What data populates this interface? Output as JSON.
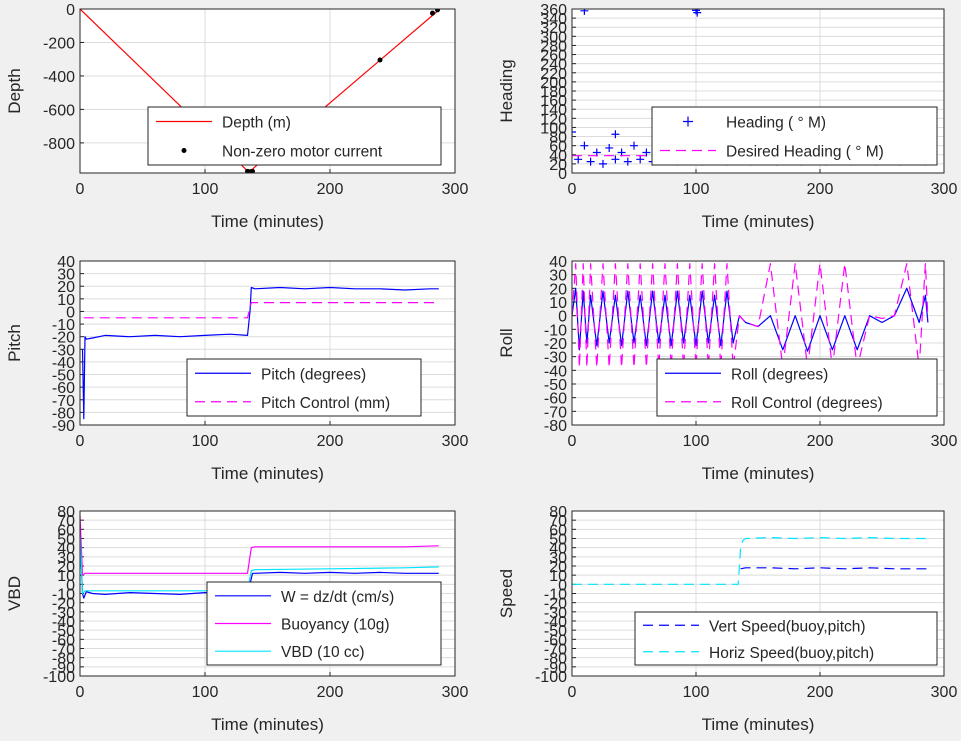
{
  "chart_data": [
    {
      "type": "line",
      "ylabel": "Depth",
      "xlabel": "Time (minutes)",
      "xlim": [
        0,
        300
      ],
      "ylim": [
        -980,
        0
      ],
      "xticks": [
        0,
        100,
        200,
        300
      ],
      "yticks": [
        0,
        -200,
        -400,
        -600,
        -800
      ],
      "grid": true,
      "legend_position": "lower-right",
      "series": [
        {
          "name": "Depth (m)",
          "color": "#ff0000",
          "style": "solid",
          "x": [
            0,
            135,
            288
          ],
          "y": [
            0,
            -975,
            0
          ]
        },
        {
          "name": "Non-zero motor current",
          "color": "#000000",
          "style": "dot",
          "x": [
            134,
            135,
            136,
            137,
            138,
            240,
            282,
            286
          ],
          "y": [
            -970,
            -975,
            -973,
            -972,
            -970,
            -305,
            -25,
            -5
          ]
        }
      ]
    },
    {
      "type": "scatter",
      "ylabel": "Heading",
      "xlabel": "Time (minutes)",
      "xlim": [
        0,
        300
      ],
      "ylim": [
        0,
        360
      ],
      "xticks": [
        0,
        100,
        200,
        300
      ],
      "yticks": [
        0,
        20,
        40,
        60,
        80,
        100,
        120,
        140,
        160,
        180,
        200,
        220,
        240,
        260,
        280,
        300,
        320,
        340,
        360
      ],
      "grid": true,
      "legend_position": "upper-right",
      "series": [
        {
          "name": "Heading (  ° M)",
          "color": "#0000ff",
          "style": "plus",
          "x": [
            0,
            5,
            10,
            15,
            20,
            25,
            30,
            35,
            40,
            45,
            50,
            55,
            60,
            65,
            70,
            75,
            80,
            85,
            90,
            95,
            100,
            105,
            110,
            115,
            120,
            125,
            130,
            135,
            140,
            145,
            150,
            155,
            160,
            165,
            170,
            175,
            180,
            185,
            190,
            195,
            200,
            205,
            210,
            215,
            220,
            225,
            230,
            235,
            240,
            245,
            250,
            255,
            260,
            265,
            270,
            275,
            280,
            285,
            288,
            10,
            100,
            101,
            35,
            75,
            95,
            125,
            145,
            175,
            205,
            225,
            255
          ],
          "y": [
            90,
            30,
            60,
            25,
            45,
            20,
            55,
            30,
            45,
            25,
            60,
            30,
            45,
            25,
            55,
            35,
            45,
            25,
            60,
            30,
            45,
            25,
            55,
            35,
            45,
            25,
            60,
            30,
            45,
            25,
            55,
            35,
            45,
            25,
            60,
            30,
            45,
            25,
            55,
            35,
            45,
            25,
            60,
            30,
            45,
            25,
            55,
            35,
            45,
            25,
            60,
            30,
            45,
            25,
            55,
            35,
            45,
            25,
            40,
            356,
            357,
            352,
            85,
            100,
            110,
            120,
            85,
            90,
            95,
            105,
            80
          ]
        },
        {
          "name": "Desired Heading (  ° M)",
          "color": "#ff00ff",
          "style": "dash",
          "x": [
            0,
            288
          ],
          "y": [
            38,
            38
          ]
        }
      ]
    },
    {
      "type": "line",
      "ylabel": "Pitch",
      "xlabel": "Time (minutes)",
      "xlim": [
        0,
        300
      ],
      "ylim": [
        -90,
        40
      ],
      "xticks": [
        0,
        100,
        200,
        300
      ],
      "yticks": [
        -90,
        -80,
        -70,
        -60,
        -50,
        -40,
        -30,
        -20,
        -10,
        0,
        10,
        20,
        30,
        40
      ],
      "grid": true,
      "legend_position": "lower-right",
      "series": [
        {
          "name": "Pitch (degrees)",
          "color": "#0000ff",
          "style": "solid",
          "x": [
            2,
            3,
            4,
            5,
            10,
            20,
            40,
            60,
            80,
            100,
            120,
            134,
            136,
            137,
            140,
            160,
            180,
            200,
            220,
            240,
            260,
            280,
            287
          ],
          "y": [
            -30,
            -85,
            -20,
            -22,
            -21,
            -19,
            -20,
            -19,
            -20,
            -19,
            -18,
            -19,
            0,
            19,
            18,
            19,
            18,
            19,
            18,
            18,
            17,
            18,
            18
          ]
        },
        {
          "name": "Pitch Control (mm)",
          "color": "#ff00ff",
          "style": "dash",
          "x": [
            3,
            3,
            134,
            137,
            287
          ],
          "y": [
            -5,
            -5,
            -5,
            7,
            7
          ]
        }
      ]
    },
    {
      "type": "line",
      "ylabel": "Roll",
      "xlabel": "Time (minutes)",
      "xlim": [
        0,
        300
      ],
      "ylim": [
        -80,
        40
      ],
      "xticks": [
        0,
        100,
        200,
        300
      ],
      "yticks": [
        -80,
        -70,
        -60,
        -50,
        -40,
        -30,
        -20,
        -10,
        0,
        10,
        20,
        30,
        40
      ],
      "grid": true,
      "legend_position": "lower-right",
      "series": [
        {
          "name": "Roll (degrees)",
          "color": "#0000ff",
          "style": "solid",
          "x": [
            0,
            3,
            6,
            9,
            12,
            15,
            20,
            25,
            30,
            35,
            40,
            45,
            50,
            55,
            60,
            65,
            70,
            75,
            80,
            85,
            90,
            95,
            100,
            105,
            110,
            115,
            120,
            125,
            130,
            135,
            140,
            150,
            160,
            170,
            180,
            190,
            200,
            210,
            220,
            230,
            240,
            250,
            260,
            270,
            280,
            285,
            287
          ],
          "y": [
            0,
            20,
            -25,
            18,
            -20,
            15,
            -22,
            18,
            -20,
            15,
            -22,
            18,
            -20,
            15,
            -22,
            18,
            -20,
            15,
            -22,
            18,
            -20,
            15,
            -22,
            18,
            -20,
            15,
            -22,
            18,
            -20,
            0,
            -5,
            -8,
            0,
            -25,
            0,
            -26,
            0,
            -25,
            0,
            -25,
            0,
            -5,
            0,
            20,
            -5,
            15,
            -5
          ]
        },
        {
          "name": "Roll Control (degrees)",
          "color": "#ff00ff",
          "style": "dash",
          "x": [
            0,
            3,
            6,
            9,
            12,
            15,
            20,
            25,
            30,
            35,
            40,
            45,
            50,
            55,
            60,
            65,
            70,
            75,
            80,
            85,
            90,
            95,
            100,
            105,
            110,
            115,
            120,
            125,
            130,
            135,
            140,
            150,
            160,
            170,
            180,
            190,
            200,
            210,
            220,
            230,
            240,
            250,
            260,
            270,
            280,
            285,
            287
          ],
          "y": [
            0,
            38,
            -38,
            38,
            -38,
            38,
            -38,
            38,
            -38,
            38,
            -38,
            38,
            -38,
            38,
            -38,
            38,
            -38,
            38,
            -38,
            38,
            -38,
            38,
            -38,
            38,
            -38,
            38,
            -38,
            38,
            -38,
            0,
            -5,
            -8,
            38,
            -38,
            38,
            -38,
            38,
            -38,
            38,
            -38,
            0,
            -2,
            0,
            38,
            -38,
            38,
            -2
          ]
        }
      ]
    },
    {
      "type": "line",
      "ylabel": "VBD",
      "xlabel": "Time (minutes)",
      "xlim": [
        0,
        300
      ],
      "ylim": [
        -100,
        80
      ],
      "xticks": [
        0,
        100,
        200,
        300
      ],
      "yticks": [
        -100,
        -90,
        -80,
        -70,
        -60,
        -50,
        -40,
        -30,
        -20,
        -10,
        0,
        10,
        20,
        30,
        40,
        50,
        60,
        70,
        80
      ],
      "grid": true,
      "legend_position": "lower-right",
      "series": [
        {
          "name": "W = dz/dt (cm/s)",
          "color": "#0000ff",
          "style": "solid",
          "x": [
            0,
            2,
            3,
            5,
            10,
            20,
            40,
            60,
            80,
            100,
            120,
            134,
            136,
            138,
            140,
            160,
            180,
            200,
            220,
            240,
            260,
            280,
            287
          ],
          "y": [
            60,
            -10,
            -15,
            -8,
            -10,
            -11,
            -9,
            -10,
            -11,
            -9,
            -10,
            -10,
            0,
            12,
            12,
            13,
            12,
            13,
            12,
            13,
            12,
            12,
            12
          ]
        },
        {
          "name": "Buoyancy (10g)",
          "color": "#ff00ff",
          "style": "solid",
          "x": [
            0,
            2,
            4,
            10,
            60,
            120,
            134,
            137,
            140,
            200,
            260,
            287
          ],
          "y": [
            75,
            10,
            12,
            12,
            12,
            12,
            12,
            40,
            41,
            41,
            41,
            42
          ]
        },
        {
          "name": "VBD (10 cc)",
          "color": "#00e5ff",
          "style": "solid",
          "x": [
            0,
            2,
            4,
            10,
            60,
            120,
            134,
            137,
            140,
            200,
            260,
            287
          ],
          "y": [
            55,
            -10,
            -7,
            -7,
            -7,
            -7,
            -7,
            15,
            16,
            17,
            18,
            19
          ]
        }
      ]
    },
    {
      "type": "line",
      "ylabel": "Speed",
      "xlabel": "Time (minutes)",
      "xlim": [
        0,
        300
      ],
      "ylim": [
        -100,
        80
      ],
      "xticks": [
        0,
        100,
        200,
        300
      ],
      "yticks": [
        -100,
        -90,
        -80,
        -70,
        -60,
        -50,
        -40,
        -30,
        -20,
        -10,
        0,
        10,
        20,
        30,
        40,
        50,
        60,
        70,
        80
      ],
      "grid": true,
      "legend_position": "lower-right",
      "series": [
        {
          "name": "Vert Speed(buoy,pitch)",
          "color": "#0000ff",
          "style": "dash",
          "x": [
            136,
            140,
            160,
            180,
            200,
            220,
            240,
            260,
            287
          ],
          "y": [
            17,
            18,
            18,
            17,
            18,
            17,
            18,
            17,
            17
          ]
        },
        {
          "name": "Horiz Speed(buoy,pitch)",
          "color": "#00e5ff",
          "style": "dash",
          "x": [
            0,
            130,
            134,
            136,
            138,
            140,
            160,
            180,
            200,
            220,
            240,
            260,
            287
          ],
          "y": [
            0,
            0,
            0,
            40,
            48,
            50,
            51,
            50,
            51,
            50,
            51,
            50,
            50
          ]
        }
      ]
    }
  ]
}
